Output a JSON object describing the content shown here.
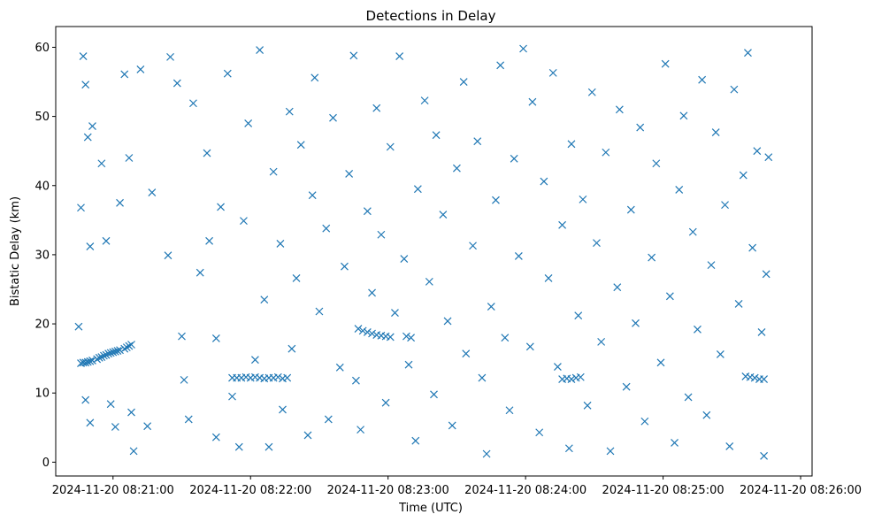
{
  "chart_data": {
    "type": "scatter",
    "title": "Detections in Delay",
    "xlabel": "Time (UTC)",
    "ylabel": "Bistatic Delay (km)",
    "marker": "x",
    "color": "#1f77b4",
    "grid": false,
    "legend": "none",
    "x_tick_labels": [
      "2024-11-20 08:21:00",
      "2024-11-20 08:22:00",
      "2024-11-20 08:23:00",
      "2024-11-20 08:24:00",
      "2024-11-20 08:25:00",
      "2024-11-20 08:26:00"
    ],
    "y_ticks": [
      0,
      10,
      20,
      30,
      40,
      50,
      60
    ],
    "xlim": [
      "2024-11-20 08:20:35",
      "2024-11-20 08:26:05"
    ],
    "ylim": [
      -2,
      63
    ],
    "series": [
      {
        "points": [
          [
            "2024-11-20 08:20:46",
            14.3
          ],
          [
            "2024-11-20 08:20:47",
            14.4
          ],
          [
            "2024-11-20 08:20:48",
            14.4
          ],
          [
            "2024-11-20 08:20:49",
            14.5
          ],
          [
            "2024-11-20 08:20:50",
            14.6
          ],
          [
            "2024-11-20 08:20:51",
            14.7
          ],
          [
            "2024-11-20 08:20:53",
            14.9
          ],
          [
            "2024-11-20 08:20:54",
            15.1
          ],
          [
            "2024-11-20 08:20:55",
            15.2
          ],
          [
            "2024-11-20 08:20:56",
            15.4
          ],
          [
            "2024-11-20 08:20:57",
            15.5
          ],
          [
            "2024-11-20 08:20:58",
            15.7
          ],
          [
            "2024-11-20 08:20:59",
            15.8
          ],
          [
            "2024-11-20 08:21:00",
            15.9
          ],
          [
            "2024-11-20 08:21:01",
            16.0
          ],
          [
            "2024-11-20 08:21:02",
            16.1
          ],
          [
            "2024-11-20 08:21:03",
            16.2
          ],
          [
            "2024-11-20 08:21:05",
            16.4
          ],
          [
            "2024-11-20 08:21:06",
            16.6
          ],
          [
            "2024-11-20 08:21:07",
            16.8
          ],
          [
            "2024-11-20 08:21:08",
            17.0
          ],
          [
            "2024-11-20 08:21:52",
            12.2
          ],
          [
            "2024-11-20 08:21:54",
            12.2
          ],
          [
            "2024-11-20 08:21:56",
            12.2
          ],
          [
            "2024-11-20 08:21:58",
            12.3
          ],
          [
            "2024-11-20 08:22:00",
            12.2
          ],
          [
            "2024-11-20 08:22:02",
            12.3
          ],
          [
            "2024-11-20 08:22:04",
            12.2
          ],
          [
            "2024-11-20 08:22:06",
            12.1
          ],
          [
            "2024-11-20 08:22:08",
            12.2
          ],
          [
            "2024-11-20 08:22:10",
            12.2
          ],
          [
            "2024-11-20 08:22:12",
            12.3
          ],
          [
            "2024-11-20 08:22:14",
            12.1
          ],
          [
            "2024-11-20 08:22:16",
            12.2
          ],
          [
            "2024-11-20 08:22:47",
            19.3
          ],
          [
            "2024-11-20 08:22:49",
            19.0
          ],
          [
            "2024-11-20 08:22:51",
            18.8
          ],
          [
            "2024-11-20 08:22:53",
            18.6
          ],
          [
            "2024-11-20 08:22:55",
            18.4
          ],
          [
            "2024-11-20 08:22:57",
            18.3
          ],
          [
            "2024-11-20 08:22:59",
            18.2
          ],
          [
            "2024-11-20 08:23:01",
            18.1
          ],
          [
            "2024-11-20 08:23:08",
            18.2
          ],
          [
            "2024-11-20 08:23:10",
            18.0
          ],
          [
            "2024-11-20 08:24:16",
            12.0
          ],
          [
            "2024-11-20 08:24:18",
            12.1
          ],
          [
            "2024-11-20 08:24:20",
            12.0
          ],
          [
            "2024-11-20 08:24:22",
            12.2
          ],
          [
            "2024-11-20 08:24:24",
            12.3
          ],
          [
            "2024-11-20 08:25:36",
            12.4
          ],
          [
            "2024-11-20 08:25:38",
            12.3
          ],
          [
            "2024-11-20 08:25:40",
            12.2
          ],
          [
            "2024-11-20 08:25:42",
            12.0
          ],
          [
            "2024-11-20 08:25:44",
            12.0
          ],
          [
            "2024-11-20 08:20:47",
            58.7
          ],
          [
            "2024-11-20 08:20:48",
            54.6
          ],
          [
            "2024-11-20 08:20:49",
            47.0
          ],
          [
            "2024-11-20 08:20:51",
            48.6
          ],
          [
            "2024-11-20 08:20:46",
            36.8
          ],
          [
            "2024-11-20 08:20:50",
            31.2
          ],
          [
            "2024-11-20 08:20:55",
            43.2
          ],
          [
            "2024-11-20 08:20:57",
            32.0
          ],
          [
            "2024-11-20 08:21:05",
            56.1
          ],
          [
            "2024-11-20 08:21:07",
            44.0
          ],
          [
            "2024-11-20 08:21:12",
            56.8
          ],
          [
            "2024-11-20 08:21:03",
            37.5
          ],
          [
            "2024-11-20 08:20:45",
            19.6
          ],
          [
            "2024-11-20 08:20:48",
            9.0
          ],
          [
            "2024-11-20 08:20:50",
            5.7
          ],
          [
            "2024-11-20 08:20:59",
            8.4
          ],
          [
            "2024-11-20 08:21:01",
            5.1
          ],
          [
            "2024-11-20 08:21:08",
            7.2
          ],
          [
            "2024-11-20 08:21:09",
            1.6
          ],
          [
            "2024-11-20 08:21:15",
            5.2
          ],
          [
            "2024-11-20 08:21:17",
            39.0
          ],
          [
            "2024-11-20 08:21:24",
            29.9
          ],
          [
            "2024-11-20 08:21:25",
            58.6
          ],
          [
            "2024-11-20 08:21:28",
            54.8
          ],
          [
            "2024-11-20 08:21:30",
            18.2
          ],
          [
            "2024-11-20 08:21:31",
            11.9
          ],
          [
            "2024-11-20 08:21:33",
            6.2
          ],
          [
            "2024-11-20 08:21:35",
            51.9
          ],
          [
            "2024-11-20 08:21:38",
            27.4
          ],
          [
            "2024-11-20 08:21:41",
            44.7
          ],
          [
            "2024-11-20 08:21:42",
            32.0
          ],
          [
            "2024-11-20 08:21:45",
            17.9
          ],
          [
            "2024-11-20 08:21:45",
            3.6
          ],
          [
            "2024-11-20 08:21:47",
            36.9
          ],
          [
            "2024-11-20 08:21:50",
            56.2
          ],
          [
            "2024-11-20 08:21:52",
            9.5
          ],
          [
            "2024-11-20 08:21:55",
            2.2
          ],
          [
            "2024-11-20 08:21:57",
            34.9
          ],
          [
            "2024-11-20 08:21:59",
            49.0
          ],
          [
            "2024-11-20 08:22:02",
            14.8
          ],
          [
            "2024-11-20 08:22:04",
            59.6
          ],
          [
            "2024-11-20 08:22:06",
            23.5
          ],
          [
            "2024-11-20 08:22:08",
            2.2
          ],
          [
            "2024-11-20 08:22:10",
            42.0
          ],
          [
            "2024-11-20 08:22:13",
            31.6
          ],
          [
            "2024-11-20 08:22:14",
            7.6
          ],
          [
            "2024-11-20 08:22:17",
            50.7
          ],
          [
            "2024-11-20 08:22:18",
            16.4
          ],
          [
            "2024-11-20 08:22:20",
            26.6
          ],
          [
            "2024-11-20 08:22:22",
            45.9
          ],
          [
            "2024-11-20 08:22:25",
            3.9
          ],
          [
            "2024-11-20 08:22:27",
            38.6
          ],
          [
            "2024-11-20 08:22:28",
            55.6
          ],
          [
            "2024-11-20 08:22:30",
            21.8
          ],
          [
            "2024-11-20 08:22:33",
            33.8
          ],
          [
            "2024-11-20 08:22:34",
            6.2
          ],
          [
            "2024-11-20 08:22:36",
            49.8
          ],
          [
            "2024-11-20 08:22:39",
            13.7
          ],
          [
            "2024-11-20 08:22:41",
            28.3
          ],
          [
            "2024-11-20 08:22:43",
            41.7
          ],
          [
            "2024-11-20 08:22:45",
            58.8
          ],
          [
            "2024-11-20 08:22:46",
            11.8
          ],
          [
            "2024-11-20 08:22:48",
            4.7
          ],
          [
            "2024-11-20 08:22:51",
            36.3
          ],
          [
            "2024-11-20 08:22:53",
            24.5
          ],
          [
            "2024-11-20 08:22:55",
            51.2
          ],
          [
            "2024-11-20 08:22:57",
            32.9
          ],
          [
            "2024-11-20 08:22:59",
            8.6
          ],
          [
            "2024-11-20 08:23:01",
            45.6
          ],
          [
            "2024-11-20 08:23:03",
            21.6
          ],
          [
            "2024-11-20 08:23:05",
            58.7
          ],
          [
            "2024-11-20 08:23:07",
            29.4
          ],
          [
            "2024-11-20 08:23:09",
            14.1
          ],
          [
            "2024-11-20 08:23:12",
            3.1
          ],
          [
            "2024-11-20 08:23:13",
            39.5
          ],
          [
            "2024-11-20 08:23:16",
            52.3
          ],
          [
            "2024-11-20 08:23:18",
            26.1
          ],
          [
            "2024-11-20 08:23:20",
            9.8
          ],
          [
            "2024-11-20 08:23:21",
            47.3
          ],
          [
            "2024-11-20 08:23:24",
            35.8
          ],
          [
            "2024-11-20 08:23:26",
            20.4
          ],
          [
            "2024-11-20 08:23:28",
            5.3
          ],
          [
            "2024-11-20 08:23:30",
            42.5
          ],
          [
            "2024-11-20 08:23:33",
            55.0
          ],
          [
            "2024-11-20 08:23:34",
            15.7
          ],
          [
            "2024-11-20 08:23:37",
            31.3
          ],
          [
            "2024-11-20 08:23:39",
            46.4
          ],
          [
            "2024-11-20 08:23:41",
            12.2
          ],
          [
            "2024-11-20 08:23:43",
            1.2
          ],
          [
            "2024-11-20 08:23:45",
            22.5
          ],
          [
            "2024-11-20 08:23:47",
            37.9
          ],
          [
            "2024-11-20 08:23:49",
            57.4
          ],
          [
            "2024-11-20 08:23:51",
            18.0
          ],
          [
            "2024-11-20 08:23:53",
            7.5
          ],
          [
            "2024-11-20 08:23:55",
            43.9
          ],
          [
            "2024-11-20 08:23:57",
            29.8
          ],
          [
            "2024-11-20 08:23:59",
            59.8
          ],
          [
            "2024-11-20 08:24:02",
            16.7
          ],
          [
            "2024-11-20 08:24:03",
            52.1
          ],
          [
            "2024-11-20 08:24:06",
            4.3
          ],
          [
            "2024-11-20 08:24:08",
            40.6
          ],
          [
            "2024-11-20 08:24:10",
            26.6
          ],
          [
            "2024-11-20 08:24:12",
            56.3
          ],
          [
            "2024-11-20 08:24:14",
            13.8
          ],
          [
            "2024-11-20 08:24:16",
            34.3
          ],
          [
            "2024-11-20 08:24:19",
            2.0
          ],
          [
            "2024-11-20 08:24:20",
            46.0
          ],
          [
            "2024-11-20 08:24:23",
            21.2
          ],
          [
            "2024-11-20 08:24:25",
            38.0
          ],
          [
            "2024-11-20 08:24:27",
            8.2
          ],
          [
            "2024-11-20 08:24:29",
            53.5
          ],
          [
            "2024-11-20 08:24:31",
            31.7
          ],
          [
            "2024-11-20 08:24:33",
            17.4
          ],
          [
            "2024-11-20 08:24:35",
            44.8
          ],
          [
            "2024-11-20 08:24:37",
            1.6
          ],
          [
            "2024-11-20 08:24:40",
            25.3
          ],
          [
            "2024-11-20 08:24:41",
            51.0
          ],
          [
            "2024-11-20 08:24:44",
            10.9
          ],
          [
            "2024-11-20 08:24:46",
            36.5
          ],
          [
            "2024-11-20 08:24:48",
            20.1
          ],
          [
            "2024-11-20 08:24:50",
            48.4
          ],
          [
            "2024-11-20 08:24:52",
            5.9
          ],
          [
            "2024-11-20 08:24:55",
            29.6
          ],
          [
            "2024-11-20 08:24:57",
            43.2
          ],
          [
            "2024-11-20 08:24:59",
            14.4
          ],
          [
            "2024-11-20 08:25:01",
            57.6
          ],
          [
            "2024-11-20 08:25:03",
            24.0
          ],
          [
            "2024-11-20 08:25:05",
            2.8
          ],
          [
            "2024-11-20 08:25:07",
            39.4
          ],
          [
            "2024-11-20 08:25:09",
            50.1
          ],
          [
            "2024-11-20 08:25:11",
            9.4
          ],
          [
            "2024-11-20 08:25:13",
            33.3
          ],
          [
            "2024-11-20 08:25:15",
            19.2
          ],
          [
            "2024-11-20 08:25:17",
            55.3
          ],
          [
            "2024-11-20 08:25:19",
            6.8
          ],
          [
            "2024-11-20 08:25:21",
            28.5
          ],
          [
            "2024-11-20 08:25:23",
            47.7
          ],
          [
            "2024-11-20 08:25:25",
            15.6
          ],
          [
            "2024-11-20 08:25:27",
            37.2
          ],
          [
            "2024-11-20 08:25:29",
            2.3
          ],
          [
            "2024-11-20 08:25:31",
            53.9
          ],
          [
            "2024-11-20 08:25:33",
            22.9
          ],
          [
            "2024-11-20 08:25:35",
            41.5
          ],
          [
            "2024-11-20 08:25:37",
            59.2
          ],
          [
            "2024-11-20 08:25:39",
            31.0
          ],
          [
            "2024-11-20 08:25:41",
            45.0
          ],
          [
            "2024-11-20 08:25:43",
            18.8
          ],
          [
            "2024-11-20 08:25:44",
            0.9
          ],
          [
            "2024-11-20 08:25:45",
            27.2
          ],
          [
            "2024-11-20 08:25:46",
            44.1
          ]
        ]
      }
    ]
  }
}
